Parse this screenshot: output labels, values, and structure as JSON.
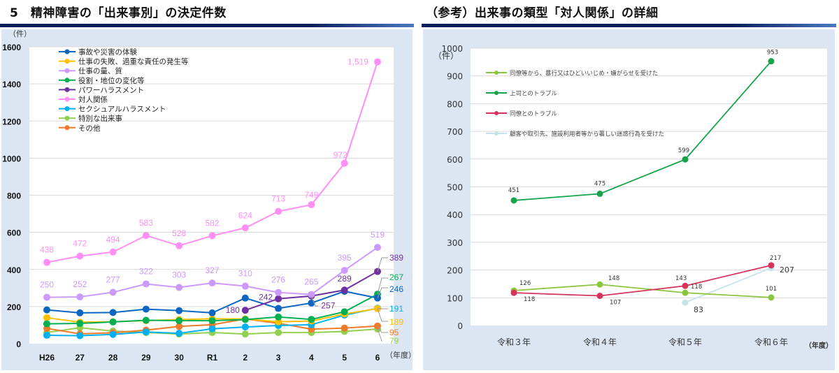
{
  "left": {
    "title": "5　精神障害の「出来事別」の決定件数"
  },
  "right": {
    "title": "（参考）出来事の類型「対人関係」の詳細"
  },
  "chart_data": [
    {
      "type": "line",
      "title": "5　精神障害の「出来事別」の決定件数",
      "ylabel": "（件）",
      "xlabel": "（年度）",
      "ylim": [
        0,
        1600
      ],
      "yticks": [
        0,
        200,
        400,
        600,
        800,
        1000,
        1200,
        1400,
        1600
      ],
      "grid": true,
      "legend_position": "top-left",
      "categories": [
        "H26",
        "27",
        "28",
        "29",
        "30",
        "R1",
        "2",
        "3",
        "4",
        "5",
        "6"
      ],
      "series": [
        {
          "name": "事故や災害の体験",
          "color": "#0b66c2",
          "values": [
            182,
            166,
            168,
            186,
            178,
            166,
            246,
            190,
            219,
            282,
            246
          ],
          "labels": {
            "10": "246"
          }
        },
        {
          "name": "仕事の失敗、過重な責任の発生等",
          "color": "#ffc000",
          "values": [
            140,
            116,
            118,
            124,
            130,
            134,
            133,
            118,
            122,
            160,
            189
          ],
          "labels": {
            "10": "189"
          }
        },
        {
          "name": "仕事の量、質",
          "color": "#cc99ff",
          "values": [
            250,
            252,
            277,
            322,
            303,
            327,
            310,
            276,
            265,
            395,
            519
          ],
          "labels": {
            "0": "250",
            "1": "252",
            "2": "277",
            "3": "322",
            "4": "303",
            "5": "327",
            "6": "310",
            "7": "276",
            "8": "265",
            "9": "395",
            "10": "519"
          }
        },
        {
          "name": "役割・地位の変化等",
          "color": "#00b050",
          "values": [
            107,
            109,
            117,
            126,
            124,
            124,
            130,
            144,
            131,
            172,
            267
          ],
          "labels": {
            "10": "267"
          }
        },
        {
          "name": "パワーハラスメント",
          "color": "#7030a0",
          "values": [
            null,
            null,
            null,
            null,
            null,
            null,
            180,
            242,
            257,
            289,
            389
          ],
          "labels": {
            "6": "180",
            "7": "242",
            "8": "257",
            "9": "289",
            "10": "389"
          }
        },
        {
          "name": "対人関係",
          "color": "#ff8ff5",
          "values": [
            438,
            472,
            494,
            583,
            528,
            582,
            624,
            713,
            749,
            972,
            1519
          ],
          "labels": {
            "0": "438",
            "1": "472",
            "2": "494",
            "3": "583",
            "4": "528",
            "5": "582",
            "6": "624",
            "7": "713",
            "8": "749",
            "9": "972",
            "10": "1,519"
          }
        },
        {
          "name": "セクシュアルハラスメント",
          "color": "#00b0f0",
          "values": [
            45,
            43,
            50,
            63,
            56,
            80,
            90,
            98,
            102,
            154,
            191
          ],
          "labels": {
            "10": "191"
          }
        },
        {
          "name": "特別な出来事",
          "color": "#92d050",
          "values": [
            60,
            86,
            68,
            60,
            52,
            60,
            52,
            60,
            60,
            66,
            79
          ],
          "labels": {
            "10": "79"
          }
        },
        {
          "name": "その他",
          "color": "#f07a28",
          "values": [
            82,
            53,
            59,
            73,
            93,
            102,
            133,
            110,
            78,
            84,
            95
          ],
          "labels": {
            "10": "95"
          }
        }
      ]
    },
    {
      "type": "line",
      "title": "（参考）出来事の類型「対人関係」の詳細",
      "ylabel": "（件）",
      "xlabel": "（年度）",
      "ylim": [
        0,
        1000
      ],
      "yticks": [
        0,
        100,
        200,
        300,
        400,
        500,
        600,
        700,
        800,
        900,
        1000
      ],
      "grid": true,
      "legend_position": "top-left",
      "categories": [
        "令和３年",
        "令和４年",
        "令和５年",
        "令和６年"
      ],
      "series": [
        {
          "name": "同僚等から、暴行又はひどいいじめ・嫌がらせを受けた",
          "color": "#8cc63f",
          "values": [
            126,
            148,
            118,
            101
          ],
          "labels": [
            "126",
            "148",
            "118",
            "101"
          ]
        },
        {
          "name": "上司とのトラブル",
          "color": "#16a34a",
          "values": [
            451,
            475,
            599,
            953
          ],
          "labels": [
            "451",
            "475",
            "599",
            "953"
          ]
        },
        {
          "name": "同僚とのトラブル",
          "color": "#d6335c",
          "values": [
            118,
            107,
            143,
            217
          ],
          "labels": [
            "118",
            "107",
            "143",
            "217"
          ]
        },
        {
          "name": "顧客や取引先、施設利用者等から著しい迷惑行為を受けた",
          "color": "#c5e3ea",
          "values": [
            null,
            null,
            83,
            207
          ],
          "labels": [
            null,
            null,
            "83",
            "207"
          ]
        }
      ]
    }
  ]
}
